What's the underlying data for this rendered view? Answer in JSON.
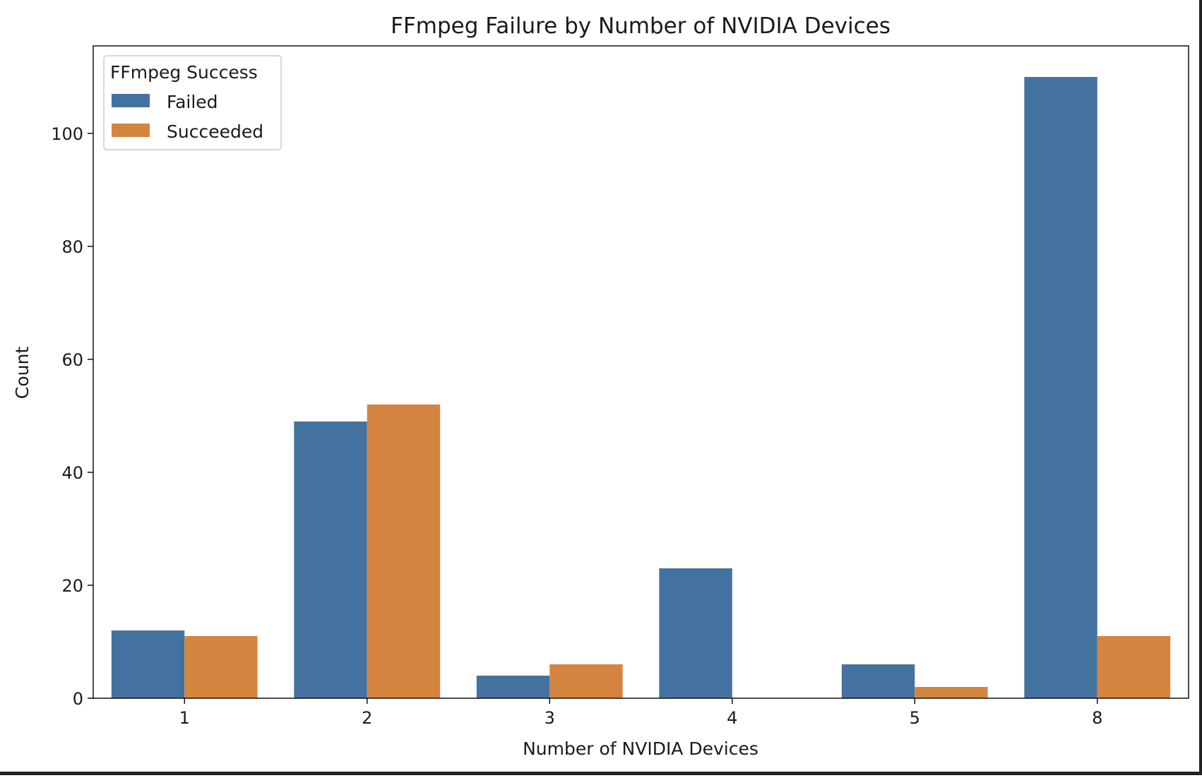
{
  "chart_data": {
    "type": "bar",
    "title": "FFmpeg Failure by Number of NVIDIA Devices",
    "xlabel": "Number of NVIDIA Devices",
    "ylabel": "Count",
    "categories": [
      "1",
      "2",
      "3",
      "4",
      "5",
      "8"
    ],
    "series": [
      {
        "name": "Failed",
        "color": "#4472a0",
        "values": [
          12,
          49,
          4,
          23,
          6,
          110
        ]
      },
      {
        "name": "Succeeded",
        "color": "#d5843f",
        "values": [
          11,
          52,
          6,
          0,
          2,
          11
        ]
      }
    ],
    "ylim": [
      0,
      115.5
    ],
    "yticks": [
      0,
      20,
      40,
      60,
      80,
      100
    ],
    "grid": false,
    "legend": {
      "title": "FFmpeg Success",
      "placement": "top-left"
    }
  }
}
